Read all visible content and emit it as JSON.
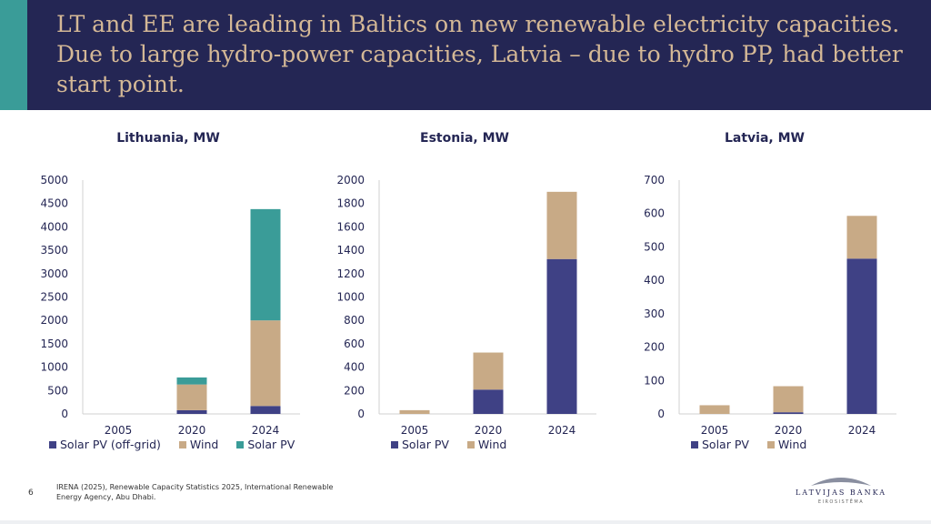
{
  "header": {
    "title": "LT and EE are leading in Baltics on new renewable electricity capacities. Due to large hydro-power capacities, Latvia – due to hydro PP, had better start point."
  },
  "colors": {
    "header_bg": "#242654",
    "accent": "#3a9c98",
    "title_text": "#d4b896",
    "solar_offgrid": "#3f4185",
    "solar_pv_lt": "#3a9c98",
    "solar_pv": "#3f4185",
    "wind": "#c8aa86"
  },
  "chart_data": [
    {
      "type": "bar",
      "stacked": true,
      "title": "Lithuania, MW",
      "categories": [
        "2005",
        "2020",
        "2024"
      ],
      "ylim": [
        0,
        5000
      ],
      "yticks": [
        0,
        500,
        1000,
        1500,
        2000,
        2500,
        3000,
        3500,
        4000,
        4500,
        5000
      ],
      "series": [
        {
          "name": "Solar PV (off-grid)",
          "color": "#3f4185",
          "values": [
            0,
            80,
            170
          ]
        },
        {
          "name": "Wind",
          "color": "#c8aa86",
          "values": [
            0,
            550,
            1830
          ]
        },
        {
          "name": "Solar PV",
          "color": "#3a9c98",
          "values": [
            0,
            150,
            2380
          ]
        }
      ],
      "legend": "bottom",
      "grid": false
    },
    {
      "type": "bar",
      "stacked": true,
      "title": "Estonia, MW",
      "categories": [
        "2005",
        "2020",
        "2024"
      ],
      "ylim": [
        0,
        2000
      ],
      "yticks": [
        0,
        200,
        400,
        600,
        800,
        1000,
        1200,
        1400,
        1600,
        1800,
        2000
      ],
      "series": [
        {
          "name": "Solar PV",
          "color": "#3f4185",
          "values": [
            0,
            208,
            1325
          ]
        },
        {
          "name": "Wind",
          "color": "#c8aa86",
          "values": [
            32,
            317,
            575
          ]
        }
      ],
      "legend": "bottom",
      "grid": false
    },
    {
      "type": "bar",
      "stacked": true,
      "title": "Latvia, MW",
      "categories": [
        "2005",
        "2020",
        "2024"
      ],
      "ylim": [
        0,
        700
      ],
      "yticks": [
        0,
        100,
        200,
        300,
        400,
        500,
        600,
        700
      ],
      "series": [
        {
          "name": "Solar PV",
          "color": "#3f4185",
          "values": [
            0,
            5,
            465
          ]
        },
        {
          "name": "Wind",
          "color": "#c8aa86",
          "values": [
            26,
            78,
            128
          ]
        }
      ],
      "legend": "bottom",
      "grid": false
    }
  ],
  "footer": {
    "page_number": "6",
    "source": "IRENA (2025), Renewable Capacity Statistics 2025, International Renewable Energy Agency, Abu Dhabi.",
    "logo_text": "LATVIJAS BANKA",
    "logo_sub": "EIROSISTĒMA"
  }
}
